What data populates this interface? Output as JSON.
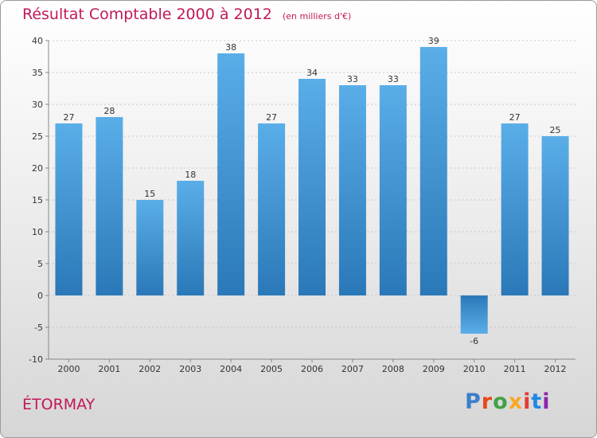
{
  "header": {
    "title": "Résultat Comptable 2000 à 2012",
    "subtitle": "(en milliers d'€)"
  },
  "footer": {
    "commune": "ÉTORMAY",
    "logo_letters": [
      "P",
      "r",
      "o",
      "x",
      "i",
      "t",
      "i"
    ],
    "logo_colors": [
      "#3b7fc9",
      "#e64a19",
      "#43a047",
      "#f9a825",
      "#e53935",
      "#1e88e5",
      "#8e24aa"
    ]
  },
  "chart_data": {
    "type": "bar",
    "title": "Résultat Comptable 2000 à 2012",
    "ylabel": "en milliers d'€",
    "xlabel": "",
    "categories": [
      "2000",
      "2001",
      "2002",
      "2003",
      "2004",
      "2005",
      "2006",
      "2007",
      "2008",
      "2009",
      "2010",
      "2011",
      "2012"
    ],
    "values": [
      27,
      28,
      15,
      18,
      38,
      27,
      34,
      33,
      33,
      39,
      -6,
      27,
      25
    ],
    "value_labels": [
      "27",
      "28",
      "15",
      "18",
      "38",
      "27",
      "34",
      "33",
      "33",
      "39",
      "-6",
      "27",
      "25"
    ],
    "ylim": [
      -10,
      40
    ],
    "yticks": [
      -10,
      -5,
      0,
      5,
      10,
      15,
      20,
      25,
      30,
      35,
      40
    ],
    "ytick_labels": [
      "-10",
      "-5",
      "0",
      "5",
      "10",
      "15",
      "20",
      "25",
      "30",
      "35",
      "40"
    ],
    "grid": true,
    "bar_color_top": "#5aaee8",
    "bar_color_bottom": "#2a78b8"
  }
}
